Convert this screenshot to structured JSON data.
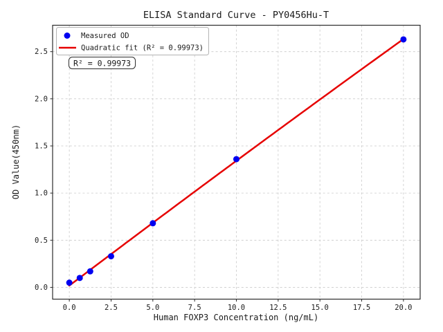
{
  "chart_data": {
    "type": "scatter",
    "title": "ELISA Standard Curve - PY0456Hu-T",
    "xlabel": "Human FOXP3 Concentration (ng/mL)",
    "ylabel": "OD Value(450nm)",
    "x": [
      0,
      0.625,
      1.25,
      2.5,
      5,
      10,
      20
    ],
    "y": [
      0.05,
      0.1,
      0.17,
      0.33,
      0.68,
      1.36,
      2.63
    ],
    "fit_type": "quadratic",
    "r_squared": 0.99973,
    "annotation_text": "R² = 0.99973",
    "xlim": [
      -1,
      21
    ],
    "ylim": [
      -0.125,
      2.78
    ],
    "xticks": [
      0.0,
      2.5,
      5.0,
      7.5,
      10.0,
      12.5,
      15.0,
      17.5,
      20.0
    ],
    "yticks": [
      0.0,
      0.5,
      1.0,
      1.5,
      2.0,
      2.5
    ],
    "grid": true,
    "legend": {
      "position": "upper-left",
      "entries": [
        {
          "label": "Measured OD",
          "marker": "circle",
          "color": "#0000f0"
        },
        {
          "label": "Quadratic fit (R² = 0.99973)",
          "marker": "line",
          "color": "#e60000"
        }
      ]
    },
    "colors": {
      "points": "#0000f0",
      "fit_line": "#e60000",
      "grid": "#c9c9c9",
      "spine": "#2b2b2b",
      "background": "#ffffff"
    }
  }
}
